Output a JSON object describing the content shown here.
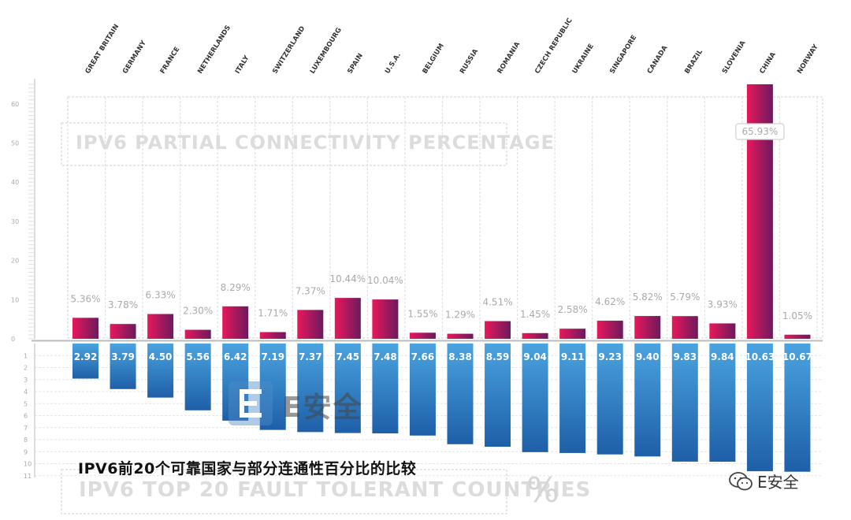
{
  "chart_data": [
    {
      "type": "bar",
      "title": "IPV6 PARTIAL CONNECTIVITY PERCENTAGE",
      "categories": [
        "GREAT BRITAIN",
        "GERMANY",
        "FRANCE",
        "NETHERLANDS",
        "ITALY",
        "SWITZERLAND",
        "LUXEMBOURG",
        "SPAIN",
        "U.S.A.",
        "BELGIUM",
        "RUSSIA",
        "ROMANIA",
        "CZECH REPUBLIC",
        "UKRAINE",
        "SINGAPORE",
        "CANADA",
        "BRAZIL",
        "SLOVENIA",
        "CHINA",
        "NORWAY"
      ],
      "values": [
        5.36,
        3.78,
        6.33,
        2.3,
        8.29,
        1.71,
        7.37,
        10.44,
        10.04,
        1.55,
        1.29,
        4.51,
        1.45,
        2.58,
        4.62,
        5.82,
        5.79,
        3.93,
        65.93,
        1.05
      ],
      "value_labels": [
        "5.36%",
        "3.78%",
        "6.33%",
        "2.30%",
        "8.29%",
        "1.71%",
        "7.37%",
        "10.44%",
        "10.04%",
        "1.55%",
        "1.29%",
        "4.51%",
        "1.45%",
        "2.58%",
        "4.62%",
        "5.82%",
        "5.79%",
        "3.93%",
        "65.93%",
        "1.05%"
      ],
      "ylim": [
        0,
        65
      ],
      "yticks": [
        0,
        10,
        20,
        30,
        40,
        50,
        60
      ],
      "ytick_labels": [
        "0",
        "10",
        "20",
        "30",
        "40",
        "50",
        "60"
      ],
      "grid": true,
      "colors": [
        "#e8185a",
        "#6b1a5e"
      ]
    },
    {
      "type": "bar",
      "title": "IPV6 TOP 20 FAULT TOLERANT COUNTRIES",
      "categories": [
        "GREAT BRITAIN",
        "GERMANY",
        "FRANCE",
        "NETHERLANDS",
        "ITALY",
        "SWITZERLAND",
        "LUXEMBOURG",
        "SPAIN",
        "U.S.A.",
        "BELGIUM",
        "RUSSIA",
        "ROMANIA",
        "CZECH REPUBLIC",
        "UKRAINE",
        "SINGAPORE",
        "CANADA",
        "BRAZIL",
        "SLOVENIA",
        "CHINA",
        "NORWAY"
      ],
      "values": [
        2.92,
        3.79,
        4.5,
        5.56,
        6.42,
        7.19,
        7.37,
        7.45,
        7.48,
        7.66,
        8.38,
        8.59,
        9.04,
        9.11,
        9.23,
        9.4,
        9.83,
        9.84,
        10.63,
        10.67
      ],
      "value_labels": [
        "2.92",
        "3.79",
        "4.50",
        "5.56",
        "6.42",
        "7.19",
        "7.37",
        "7.45",
        "7.48",
        "7.66",
        "8.38",
        "8.59",
        "9.04",
        "9.11",
        "9.23",
        "9.40",
        "9.83",
        "9.84",
        "10.63",
        "10.67"
      ],
      "ylim": [
        0,
        11
      ],
      "yticks": [
        1,
        2,
        3,
        4,
        5,
        6,
        7,
        8,
        9,
        10,
        11
      ],
      "ytick_labels": [
        "1",
        "2",
        "3",
        "4",
        "5",
        "6",
        "7",
        "8",
        "9",
        "10",
        "11"
      ],
      "unit": "%",
      "direction": "down",
      "grid": true,
      "colors": [
        "#4aa3df",
        "#1e5fa8"
      ]
    }
  ],
  "caption": "IPV6前20个可靠国家与部分连通性百分比的比较",
  "watermark": {
    "text": "E安全",
    "text_right": "E安全",
    "icon": "e-logo-icon",
    "icon_right": "wechat-icon"
  }
}
